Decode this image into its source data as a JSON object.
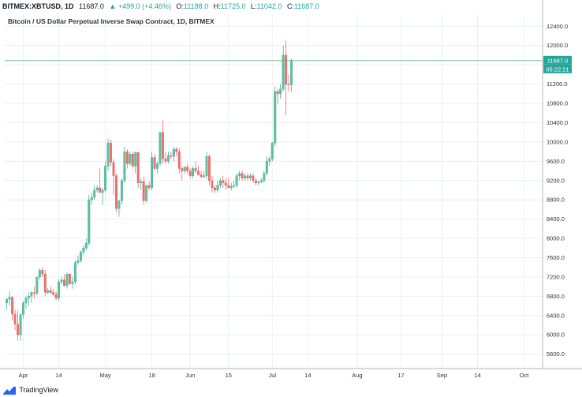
{
  "header": {
    "symbol": "BITMEX:XBTUSD, 1D",
    "last": "11687.0",
    "change": "▲ +499.0 (+4.46%)",
    "o_label": "O:",
    "o_value": "11188.0",
    "h_label": "H:",
    "h_value": "11725.0",
    "l_label": "L:",
    "l_value": "11042.0",
    "c_label": "C:",
    "c_value": "11687.0"
  },
  "footer": {
    "brand": "TradingView"
  },
  "colors": {
    "up": "#26a69a",
    "down": "#ef5350",
    "up_fill": "#5fc09a",
    "down_fill": "#e57373",
    "grid": "#eceff2",
    "last_line": "#66bb8a"
  },
  "chart_data": {
    "type": "candlestick",
    "title": "Bitcoin / US Dollar Perpetual Inverse Swap Contract, 1D, BITMEX",
    "x_tick_labels": [
      "Apr",
      "14",
      "May",
      "18",
      "Jun",
      "15",
      "Jul",
      "14",
      "Aug",
      "17",
      "Sep",
      "14",
      "Oct"
    ],
    "x_tick_dates": [
      "2020-04-01",
      "2020-04-14",
      "2020-05-01",
      "2020-05-18",
      "2020-06-01",
      "2020-06-15",
      "2020-07-01",
      "2020-07-14",
      "2020-08-01",
      "2020-08-17",
      "2020-09-01",
      "2020-09-14",
      "2020-10-01"
    ],
    "y_ticks": [
      5600,
      6000,
      6400,
      6800,
      7200,
      7600,
      8000,
      8400,
      8800,
      9200,
      9600,
      10000,
      10400,
      10800,
      11200,
      11600,
      12000,
      12400
    ],
    "ylim": [
      5300,
      12650
    ],
    "price_badge": "11687.0",
    "countdown_badge": "05:22:21",
    "last_price": 11687,
    "first_date": "2020-03-26",
    "candles": [
      [
        6660,
        6760,
        6520,
        6740
      ],
      [
        6740,
        6900,
        6600,
        6780
      ],
      [
        6780,
        6800,
        6300,
        6430
      ],
      [
        6430,
        6520,
        6100,
        6220
      ],
      [
        6220,
        6500,
        5880,
        6000
      ],
      [
        6000,
        6450,
        5880,
        6420
      ],
      [
        6420,
        6700,
        6340,
        6660
      ],
      [
        6660,
        6800,
        6540,
        6760
      ],
      [
        6760,
        6880,
        6600,
        6800
      ],
      [
        6800,
        6900,
        6660,
        6880
      ],
      [
        6880,
        7000,
        6750,
        6860
      ],
      [
        6860,
        7200,
        6820,
        7200
      ],
      [
        7200,
        7380,
        7150,
        7340
      ],
      [
        7340,
        7400,
        7200,
        7260
      ],
      [
        7260,
        7350,
        6800,
        6880
      ],
      [
        6880,
        6980,
        6840,
        6920
      ],
      [
        6920,
        7000,
        6840,
        6880
      ],
      [
        6880,
        6950,
        6800,
        6840
      ],
      [
        6840,
        6900,
        6720,
        6760
      ],
      [
        6760,
        7150,
        6700,
        7100
      ],
      [
        7100,
        7200,
        7050,
        7140
      ],
      [
        7140,
        7250,
        7000,
        7020
      ],
      [
        7020,
        7300,
        6960,
        7260
      ],
      [
        7260,
        7280,
        7040,
        7060
      ],
      [
        7060,
        7200,
        6960,
        7100
      ],
      [
        7100,
        7550,
        7050,
        7500
      ],
      [
        7500,
        7650,
        7450,
        7540
      ],
      [
        7540,
        7750,
        7500,
        7720
      ],
      [
        7720,
        7850,
        7650,
        7800
      ],
      [
        7800,
        8000,
        7750,
        7900
      ],
      [
        7900,
        8900,
        7850,
        8800
      ],
      [
        8800,
        8950,
        8700,
        8850
      ],
      [
        8850,
        9100,
        8800,
        9000
      ],
      [
        9000,
        9100,
        8950,
        9050
      ],
      [
        9050,
        9450,
        8950,
        8950
      ],
      [
        8950,
        9050,
        8700,
        9000
      ],
      [
        9000,
        9600,
        8950,
        9500
      ],
      [
        9500,
        10070,
        9400,
        9980
      ],
      [
        9980,
        10050,
        9500,
        9580
      ],
      [
        9580,
        9650,
        8900,
        9300
      ],
      [
        9300,
        9350,
        8550,
        8620
      ],
      [
        8620,
        8800,
        8450,
        8780
      ],
      [
        8780,
        9250,
        8700,
        9200
      ],
      [
        9200,
        9900,
        9150,
        9800
      ],
      [
        9800,
        9850,
        9450,
        9550
      ],
      [
        9550,
        9800,
        9500,
        9750
      ],
      [
        9750,
        9800,
        9450,
        9500
      ],
      [
        9500,
        9800,
        9350,
        9780
      ],
      [
        9780,
        9800,
        9050,
        9150
      ],
      [
        9150,
        9250,
        9000,
        9180
      ],
      [
        9180,
        9280,
        8700,
        8780
      ],
      [
        8780,
        9100,
        8750,
        9100
      ],
      [
        9100,
        9180,
        9000,
        9050
      ],
      [
        9050,
        9800,
        9000,
        9680
      ],
      [
        9680,
        9750,
        9400,
        9450
      ],
      [
        9450,
        9600,
        9350,
        9550
      ],
      [
        9550,
        10200,
        9500,
        10200
      ],
      [
        10200,
        10450,
        9550,
        9650
      ],
      [
        9650,
        9800,
        9550,
        9600
      ],
      [
        9600,
        9800,
        9550,
        9720
      ],
      [
        9720,
        9800,
        9650,
        9700
      ],
      [
        9700,
        9900,
        9600,
        9850
      ],
      [
        9850,
        9900,
        9700,
        9800
      ],
      [
        9800,
        9880,
        9350,
        9450
      ],
      [
        9450,
        9500,
        9200,
        9400
      ],
      [
        9400,
        9500,
        9350,
        9480
      ],
      [
        9480,
        9550,
        9350,
        9400
      ],
      [
        9400,
        9450,
        9250,
        9300
      ],
      [
        9300,
        9500,
        9250,
        9450
      ],
      [
        9450,
        9600,
        9350,
        9400
      ],
      [
        9400,
        9500,
        9300,
        9320
      ],
      [
        9320,
        9400,
        9250,
        9280
      ],
      [
        9280,
        9400,
        9250,
        9300
      ],
      [
        9300,
        9800,
        9250,
        9700
      ],
      [
        9700,
        9750,
        9100,
        9200
      ],
      [
        9200,
        9300,
        8950,
        9050
      ],
      [
        9050,
        9100,
        8950,
        9000
      ],
      [
        9000,
        9200,
        8950,
        9100
      ],
      [
        9100,
        9250,
        9050,
        9200
      ],
      [
        9200,
        9300,
        9050,
        9150
      ],
      [
        9150,
        9250,
        9000,
        9100
      ],
      [
        9100,
        9250,
        9050,
        9050
      ],
      [
        9050,
        9150,
        9000,
        9080
      ],
      [
        9080,
        9200,
        9050,
        9100
      ],
      [
        9100,
        9350,
        9050,
        9300
      ],
      [
        9300,
        9400,
        9200,
        9350
      ],
      [
        9350,
        9400,
        9200,
        9250
      ],
      [
        9250,
        9350,
        9200,
        9300
      ],
      [
        9300,
        9350,
        9200,
        9250
      ],
      [
        9250,
        9350,
        9200,
        9300
      ],
      [
        9300,
        9350,
        9150,
        9200
      ],
      [
        9200,
        9250,
        9100,
        9150
      ],
      [
        9150,
        9200,
        9100,
        9170
      ],
      [
        9170,
        9250,
        9150,
        9200
      ],
      [
        9200,
        9400,
        9150,
        9350
      ],
      [
        9350,
        9700,
        9300,
        9600
      ],
      [
        9600,
        9700,
        9500,
        9650
      ],
      [
        9650,
        10000,
        9600,
        9980
      ],
      [
        9980,
        11150,
        9900,
        11050
      ],
      [
        11050,
        11100,
        10800,
        11000
      ],
      [
        11000,
        11200,
        10900,
        11100
      ],
      [
        11100,
        12000,
        11050,
        11800
      ],
      [
        11800,
        12100,
        10550,
        11200
      ],
      [
        11200,
        11400,
        11050,
        11188
      ],
      [
        11188,
        11725,
        11042,
        11687
      ]
    ]
  }
}
